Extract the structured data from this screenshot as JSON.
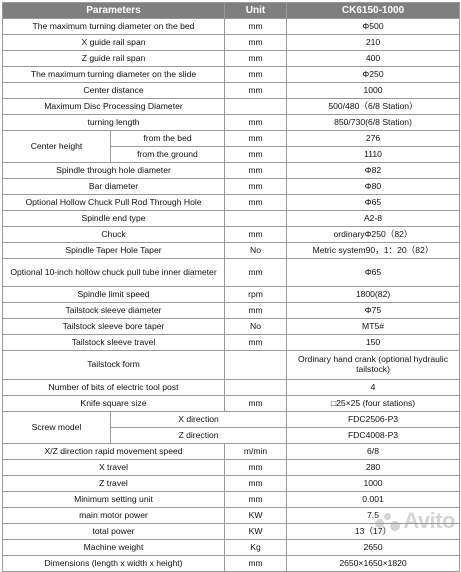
{
  "header": {
    "parameters": "Parameters",
    "unit": "Unit",
    "model": "CK6150-1000"
  },
  "rows": [
    {
      "p": "The maximum turning diameter on the bed",
      "u": "mm",
      "v": "Φ500"
    },
    {
      "p": "X guide rail span",
      "u": "mm",
      "v": "210"
    },
    {
      "p": "Z guide rail span",
      "u": "mm",
      "v": "400"
    },
    {
      "p": "The maximum turning diameter on the slide",
      "u": "mm",
      "v": "Φ250"
    },
    {
      "p": "Center distance",
      "u": "mm",
      "v": "1000"
    },
    {
      "p": "Maximum Disc Processing Diameter",
      "u": "",
      "v": "500/480（6/8 Station）"
    },
    {
      "p": "turning length",
      "u": "mm",
      "v": "850/730(6/8 Station)"
    }
  ],
  "center_height": {
    "label": "Center height",
    "sub1": "from the bed",
    "sub2": "from the ground",
    "u1": "mm",
    "u2": "mm",
    "v1": "276",
    "v2": "1110"
  },
  "rows2": [
    {
      "p": "Spindle through hole diameter",
      "u": "mm",
      "v": "Φ82"
    },
    {
      "p": "Bar diameter",
      "u": "mm",
      "v": "Φ80"
    },
    {
      "p": "Optional Hollow Chuck Pull Rod Through Hole",
      "u": "mm",
      "v": "Φ65"
    },
    {
      "p": "Spindle end type",
      "u": "",
      "v": "A2-8"
    },
    {
      "p": "Chuck",
      "u": "mm",
      "v": "ordinaryΦ250（82）"
    },
    {
      "p": "Spindle Taper Hole Taper",
      "u": "No",
      "v": "Metric system90，1：20（82）"
    },
    {
      "p": "Optional 10-inch hollow chuck pull tube inner diameter",
      "u": "mm",
      "v": "Φ65"
    },
    {
      "p": "Spindle limit speed",
      "u": "rpm",
      "v": "1800(82)"
    },
    {
      "p": "Tailstock sleeve diameter",
      "u": "mm",
      "v": "Φ75"
    },
    {
      "p": "Tailstock sleeve bore taper",
      "u": "No",
      "v": "MT5#"
    },
    {
      "p": "Tailstock sleeve travel",
      "u": "mm",
      "v": "150"
    },
    {
      "p": "Tailstock form",
      "u": "",
      "v": "Ordinary hand crank (optional hydraulic tailstock)"
    },
    {
      "p": "Number of bits of electric tool post",
      "u": "",
      "v": "4"
    },
    {
      "p": "Knife square size",
      "u": "mm",
      "v": "□25×25 (four stations)"
    }
  ],
  "screw_model": {
    "label": "Screw model",
    "sub1": "X direction",
    "sub2": "Z direction",
    "v1": "FDC2506-P3",
    "v2": "FDC4008-P3"
  },
  "rows3": [
    {
      "p": "X/Z direction rapid movement speed",
      "u": "m/min",
      "v": "6/8"
    },
    {
      "p": "X travel",
      "u": "mm",
      "v": "280"
    },
    {
      "p": "Z travel",
      "u": "mm",
      "v": "1000"
    },
    {
      "p": "Minimum setting unit",
      "u": "mm",
      "v": "0.001"
    },
    {
      "p": "main motor power",
      "u": "KW",
      "v": "7.5"
    },
    {
      "p": "total power",
      "u": "KW",
      "v": "13（17）"
    },
    {
      "p": "Machine weight",
      "u": "Kg",
      "v": "2650"
    },
    {
      "p": "Dimensions (length x width x height)",
      "u": "mm",
      "v": "2650×1650×1820"
    }
  ],
  "watermark": "Avito"
}
